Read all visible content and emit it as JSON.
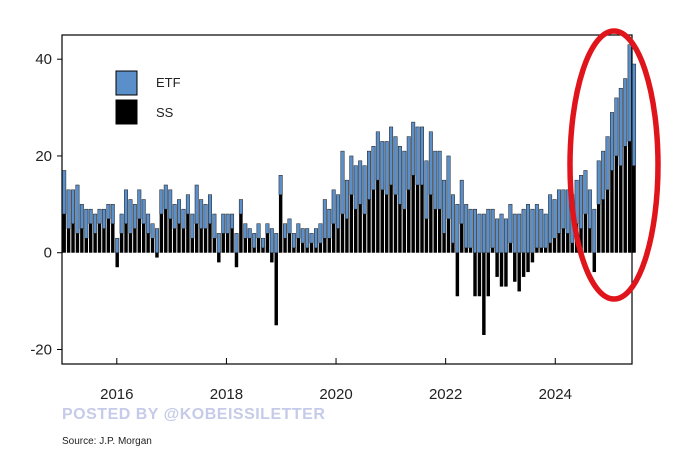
{
  "chart_data": {
    "type": "bar",
    "stacked": true,
    "title": "",
    "xlabel": "",
    "ylabel": "",
    "xlim": [
      2015.0,
      2025.4
    ],
    "ylim": [
      -23,
      45
    ],
    "x_ticks": [
      2016,
      2018,
      2020,
      2022,
      2024
    ],
    "x_tick_labels": [
      "2016",
      "2018",
      "2020",
      "2022",
      "2024"
    ],
    "y_ticks": [
      -20,
      0,
      20,
      40
    ],
    "y_tick_labels": [
      "-20",
      "0",
      "20",
      "40"
    ],
    "grid": false,
    "legend_position": "top-left",
    "series": [
      {
        "name": "ETF",
        "color": "#5b8fc9",
        "values": [
          9,
          8,
          7,
          10,
          5,
          6,
          3,
          4,
          3,
          4,
          3,
          4,
          3,
          4,
          7,
          7,
          5,
          6,
          5,
          4,
          3,
          5,
          5,
          5,
          6,
          5,
          5,
          4,
          4,
          5,
          8,
          6,
          5,
          6,
          5,
          4,
          4,
          4,
          3,
          4,
          3,
          3,
          2,
          3,
          3,
          2,
          2,
          5,
          4,
          4,
          3,
          3,
          3,
          3,
          3,
          4,
          2,
          4,
          4,
          8,
          6,
          7,
          7,
          13,
          8,
          8,
          9,
          9,
          10,
          10,
          9,
          10,
          10,
          11,
          12,
          12,
          12,
          12,
          11,
          11,
          12,
          12,
          12,
          13,
          12,
          12,
          11,
          13,
          10,
          10,
          9,
          9,
          8,
          9,
          8,
          8,
          9,
          8,
          7,
          8,
          7,
          8,
          8,
          8,
          9,
          10,
          9,
          9,
          8,
          7,
          10,
          8,
          9,
          8,
          9,
          10,
          9,
          11,
          9,
          8,
          9,
          9,
          10,
          11,
          12,
          12,
          16,
          14,
          20,
          21
        ],
        "start_year": 2015.04,
        "bar_step_years": 0.0806
      },
      {
        "name": "SS",
        "color": "#000000",
        "values": [
          8,
          5,
          6,
          4,
          5,
          3,
          6,
          4,
          6,
          5,
          7,
          6,
          -3,
          4,
          6,
          4,
          5,
          7,
          6,
          4,
          3,
          -1,
          8,
          9,
          7,
          5,
          6,
          5,
          8,
          3,
          6,
          5,
          5,
          6,
          3,
          -2,
          4,
          4,
          5,
          -3,
          8,
          3,
          3,
          1,
          3,
          1,
          4,
          -2,
          -15,
          12,
          3,
          4,
          1,
          3,
          2,
          1,
          2,
          1,
          2,
          3,
          3,
          6,
          5,
          8,
          7,
          12,
          9,
          10,
          8,
          11,
          13,
          15,
          13,
          12,
          14,
          12,
          10,
          9,
          13,
          16,
          14,
          14,
          7,
          12,
          9,
          9,
          4,
          7,
          2,
          -9,
          6,
          1,
          1,
          -9,
          -9,
          -17,
          -9,
          1,
          -5,
          -7,
          -7,
          2,
          -6,
          -8,
          -5,
          -4,
          -2,
          1,
          1,
          1,
          2,
          3,
          4,
          5,
          4,
          2,
          6,
          5,
          8,
          5,
          -4,
          10,
          11,
          13,
          17,
          20,
          18,
          22,
          23,
          18
        ],
        "start_year": 2015.04,
        "bar_step_years": 0.0806
      }
    ],
    "annotations": [
      {
        "type": "ellipse",
        "color": "#e0151b",
        "description_position": "right-side highlight around 2024.5-2025.4"
      }
    ]
  },
  "legend": {
    "etf_label": "ETF",
    "ss_label": "SS",
    "etf_color": "#5b8fc9",
    "ss_color": "#000000"
  },
  "watermark": "POSTED BY @KOBEISSILETTER",
  "source": "Source: J.P. Morgan",
  "colors": {
    "highlight_ellipse": "#e0151b",
    "watermark": "#c5cbe8"
  }
}
